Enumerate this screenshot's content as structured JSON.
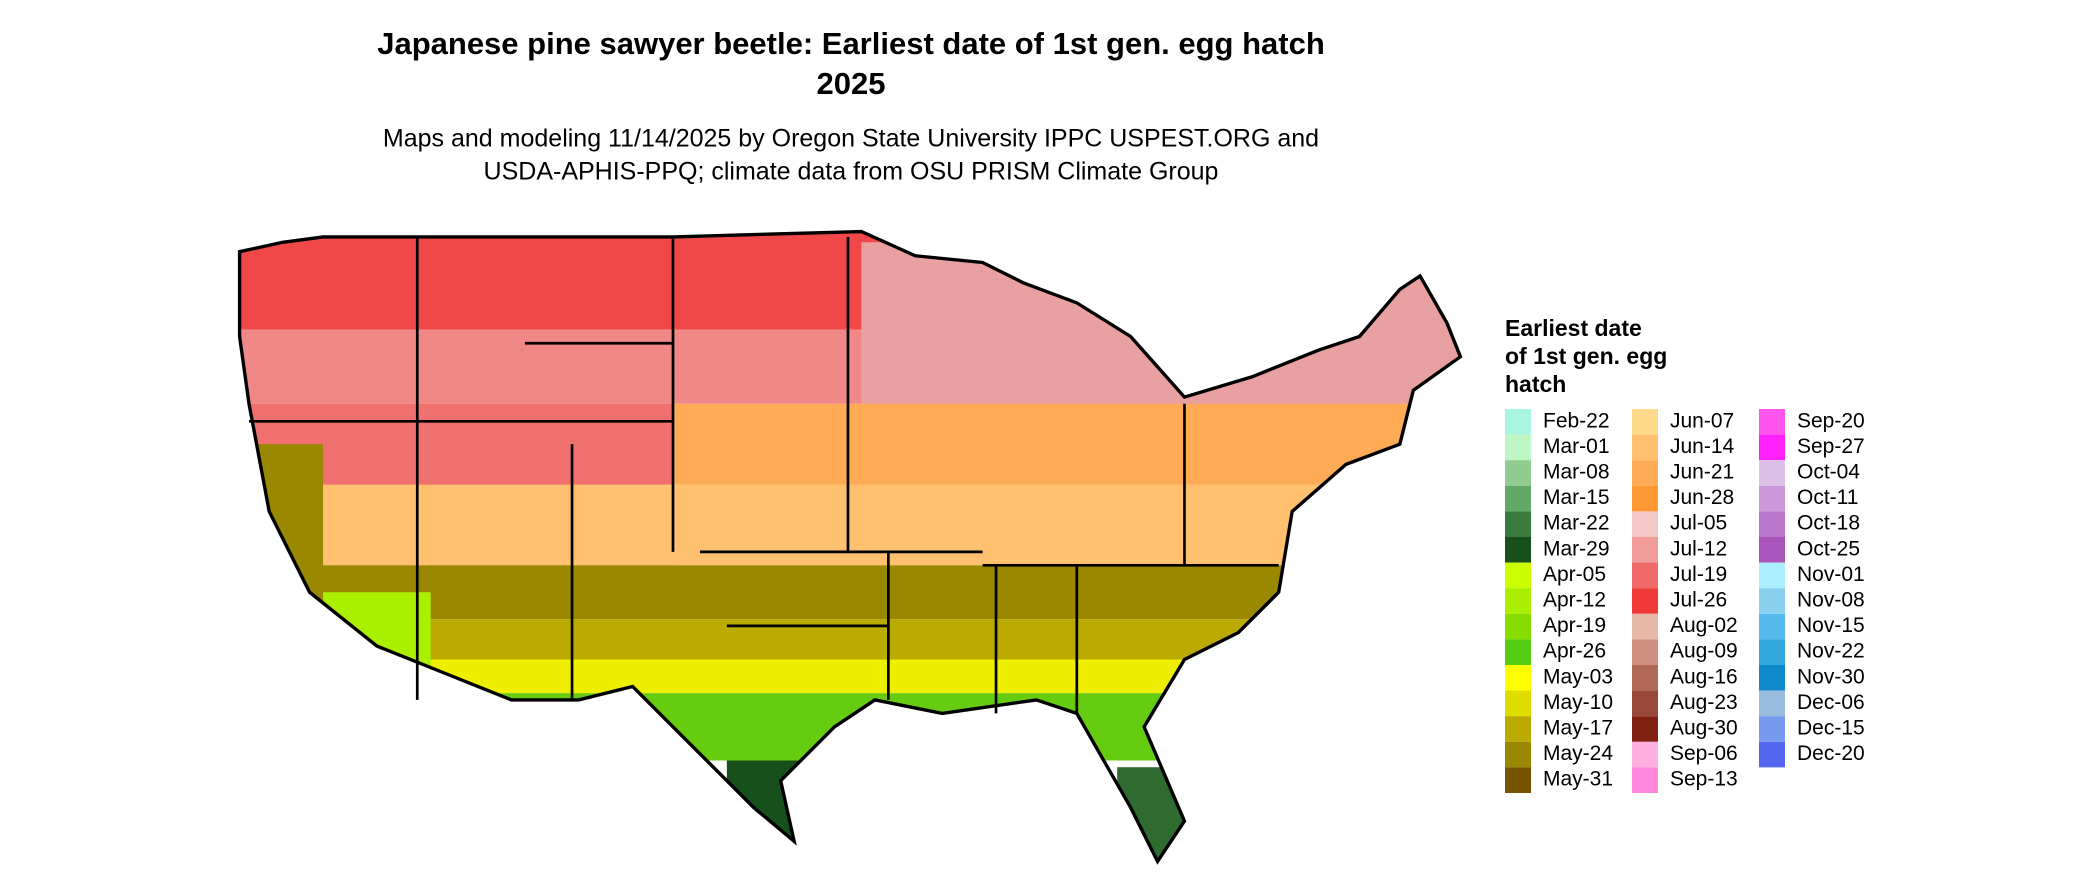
{
  "title": "Japanese pine sawyer beetle: Earliest date of 1st gen. egg hatch",
  "title_year": "2025",
  "subtitle": [
    "Maps and modeling 11/14/2025 by Oregon State University IPPC USPEST.ORG and",
    "USDA-APHIS-PPQ; climate data from OSU PRISM Climate Group"
  ],
  "legend": {
    "title": [
      "Earliest date",
      "of 1st gen. egg",
      "hatch"
    ],
    "columns": [
      [
        {
          "label": "Feb-22",
          "color": "#a8f5e2"
        },
        {
          "label": "Mar-01",
          "color": "#bff7c4"
        },
        {
          "label": "Mar-08",
          "color": "#90cc90"
        },
        {
          "label": "Mar-15",
          "color": "#62a866"
        },
        {
          "label": "Mar-22",
          "color": "#3a7a3e"
        },
        {
          "label": "Mar-29",
          "color": "#17501a"
        },
        {
          "label": "Apr-05",
          "color": "#ccff00"
        },
        {
          "label": "Apr-12",
          "color": "#aaee00"
        },
        {
          "label": "Apr-19",
          "color": "#88dd00"
        },
        {
          "label": "Apr-26",
          "color": "#55cc11"
        },
        {
          "label": "May-03",
          "color": "#ffff00"
        },
        {
          "label": "May-10",
          "color": "#dddd00"
        },
        {
          "label": "May-17",
          "color": "#bbaa00"
        },
        {
          "label": "May-24",
          "color": "#998800"
        },
        {
          "label": "May-31",
          "color": "#775500"
        }
      ],
      [
        {
          "label": "Jun-07",
          "color": "#ffd98a"
        },
        {
          "label": "Jun-14",
          "color": "#ffc070"
        },
        {
          "label": "Jun-21",
          "color": "#ffaa55"
        },
        {
          "label": "Jun-28",
          "color": "#ff9933"
        },
        {
          "label": "Jul-05",
          "color": "#f5c8c8"
        },
        {
          "label": "Jul-12",
          "color": "#f09a9a"
        },
        {
          "label": "Jul-19",
          "color": "#f06a6a"
        },
        {
          "label": "Jul-26",
          "color": "#f03a3a"
        },
        {
          "label": "Aug-02",
          "color": "#e8b8a8"
        },
        {
          "label": "Aug-09",
          "color": "#d09080"
        },
        {
          "label": "Aug-16",
          "color": "#b06858"
        },
        {
          "label": "Aug-23",
          "color": "#984838"
        },
        {
          "label": "Aug-30",
          "color": "#802010"
        },
        {
          "label": "Sep-06",
          "color": "#ffb0e0"
        },
        {
          "label": "Sep-13",
          "color": "#ff88dd"
        }
      ],
      [
        {
          "label": "Sep-20",
          "color": "#ff55ee"
        },
        {
          "label": "Sep-27",
          "color": "#ff22ff"
        },
        {
          "label": "Oct-04",
          "color": "#ddc0e8"
        },
        {
          "label": "Oct-11",
          "color": "#cc99dd"
        },
        {
          "label": "Oct-18",
          "color": "#bb77cc"
        },
        {
          "label": "Oct-25",
          "color": "#aa55bb"
        },
        {
          "label": "Nov-01",
          "color": "#aaeeff"
        },
        {
          "label": "Nov-08",
          "color": "#88d0ee"
        },
        {
          "label": "Nov-15",
          "color": "#55bbee"
        },
        {
          "label": "Nov-22",
          "color": "#33aadd"
        },
        {
          "label": "Nov-30",
          "color": "#1188cc"
        },
        {
          "label": "Dec-06",
          "color": "#99bbdd"
        },
        {
          "label": "Dec-15",
          "color": "#7799ee"
        },
        {
          "label": "Dec-20",
          "color": "#5566ee"
        }
      ]
    ]
  }
}
